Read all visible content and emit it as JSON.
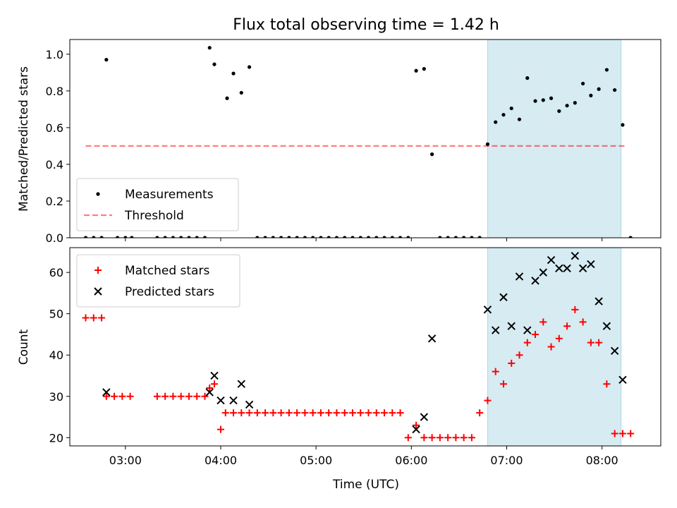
{
  "chart_data": [
    {
      "type": "scatter",
      "title": "Flux total observing time = 1.42 h",
      "ylabel": "Matched/Predicted stars",
      "ylim": [
        0,
        1.08
      ],
      "yticks": [
        0.0,
        0.2,
        0.4,
        0.6,
        0.8,
        1.0
      ],
      "ytick_labels": [
        "0.0",
        "0.2",
        "0.4",
        "0.6",
        "0.8",
        "1.0"
      ],
      "xlim": [
        "02:25",
        "08:37"
      ],
      "xticks": [
        "03:00",
        "04:00",
        "05:00",
        "06:00",
        "07:00",
        "08:00"
      ],
      "legend": {
        "placement": "lower-left",
        "entries": [
          "Measurements",
          "Threshold"
        ]
      },
      "highlight_span": {
        "x": [
          "06:48",
          "08:12"
        ],
        "color": "#add8e6"
      },
      "threshold": {
        "name": "Threshold",
        "y": 0.5,
        "x": [
          "02:35",
          "08:15"
        ],
        "color": "#ff0000"
      },
      "series": [
        {
          "name": "Measurements",
          "color": "#000000",
          "x": [
            "02:35",
            "02:40",
            "02:45",
            "02:48",
            "02:55",
            "03:00",
            "03:04",
            "03:20",
            "03:25",
            "03:30",
            "03:35",
            "03:40",
            "03:45",
            "03:50",
            "03:53",
            "03:56",
            "04:04",
            "04:08",
            "04:13",
            "04:18",
            "04:23",
            "04:28",
            "04:33",
            "04:38",
            "04:43",
            "04:48",
            "04:53",
            "04:58",
            "05:03",
            "05:08",
            "05:13",
            "05:18",
            "05:23",
            "05:28",
            "05:33",
            "05:38",
            "05:43",
            "05:48",
            "05:53",
            "05:58",
            "06:03",
            "06:08",
            "06:13",
            "06:18",
            "06:23",
            "06:28",
            "06:33",
            "06:38",
            "06:43",
            "06:48",
            "06:53",
            "06:58",
            "07:03",
            "07:08",
            "07:13",
            "07:18",
            "07:23",
            "07:28",
            "07:33",
            "07:38",
            "07:43",
            "07:48",
            "07:53",
            "07:58",
            "08:03",
            "08:08",
            "08:13",
            "08:18"
          ],
          "y": [
            0,
            0,
            0,
            0.97,
            0,
            0,
            0,
            0,
            0,
            0,
            0,
            0,
            0,
            0,
            1.035,
            0.945,
            0.76,
            0.895,
            0.79,
            0.93,
            0,
            0,
            0,
            0,
            0,
            0,
            0,
            0,
            0,
            0,
            0,
            0,
            0,
            0,
            0,
            0,
            0,
            0,
            0,
            0,
            0.91,
            0.92,
            0.455,
            0,
            0,
            0,
            0,
            0,
            0,
            0.51,
            0.63,
            0.67,
            0.705,
            0.645,
            0.87,
            0.745,
            0.75,
            0.76,
            0.69,
            0.72,
            0.735,
            0.84,
            0.775,
            0.81,
            0.915,
            0.805,
            0.615,
            0
          ]
        }
      ]
    },
    {
      "type": "scatter",
      "xlabel": "Time (UTC)",
      "ylabel": "Count",
      "ylim": [
        18,
        66
      ],
      "yticks": [
        20,
        30,
        40,
        50,
        60
      ],
      "ytick_labels": [
        "20",
        "30",
        "40",
        "50",
        "60"
      ],
      "xlim": [
        "02:25",
        "08:37"
      ],
      "xticks": [
        "03:00",
        "04:00",
        "05:00",
        "06:00",
        "07:00",
        "08:00"
      ],
      "xtick_labels": [
        "03:00",
        "04:00",
        "05:00",
        "06:00",
        "07:00",
        "08:00"
      ],
      "legend": {
        "placement": "top-left",
        "entries": [
          "Matched stars",
          "Predicted stars"
        ]
      },
      "highlight_span": {
        "x": [
          "06:48",
          "08:12"
        ],
        "color": "#add8e6"
      },
      "series": [
        {
          "name": "Matched stars",
          "marker": "+",
          "color": "#ff0000",
          "x": [
            "02:35",
            "02:40",
            "02:45",
            "02:48",
            "02:53",
            "02:58",
            "03:03",
            "03:20",
            "03:25",
            "03:30",
            "03:35",
            "03:40",
            "03:45",
            "03:50",
            "03:53",
            "03:56",
            "04:00",
            "04:03",
            "04:08",
            "04:13",
            "04:18",
            "04:23",
            "04:28",
            "04:33",
            "04:38",
            "04:43",
            "04:48",
            "04:53",
            "04:58",
            "05:03",
            "05:08",
            "05:13",
            "05:18",
            "05:23",
            "05:28",
            "05:33",
            "05:38",
            "05:43",
            "05:48",
            "05:53",
            "05:58",
            "06:03",
            "06:08",
            "06:13",
            "06:18",
            "06:23",
            "06:28",
            "06:33",
            "06:38",
            "06:43",
            "06:48",
            "06:53",
            "06:58",
            "07:03",
            "07:08",
            "07:13",
            "07:18",
            "07:23",
            "07:28",
            "07:33",
            "07:38",
            "07:43",
            "07:48",
            "07:53",
            "07:58",
            "08:03",
            "08:08",
            "08:13",
            "08:18"
          ],
          "y": [
            49,
            49,
            49,
            30,
            30,
            30,
            30,
            30,
            30,
            30,
            30,
            30,
            30,
            30,
            32,
            33,
            22,
            26,
            26,
            26,
            26,
            26,
            26,
            26,
            26,
            26,
            26,
            26,
            26,
            26,
            26,
            26,
            26,
            26,
            26,
            26,
            26,
            26,
            26,
            26,
            20,
            23,
            20,
            20,
            20,
            20,
            20,
            20,
            20,
            26,
            29,
            36,
            33,
            38,
            40,
            43,
            45,
            48,
            42,
            44,
            47,
            51,
            48,
            43,
            43,
            33,
            21,
            21,
            21
          ]
        },
        {
          "name": "Predicted stars",
          "marker": "x",
          "color": "#000000",
          "x": [
            "02:48",
            "03:53",
            "03:56",
            "04:00",
            "04:08",
            "04:13",
            "04:18",
            "06:03",
            "06:08",
            "06:13",
            "06:48",
            "06:53",
            "06:58",
            "07:03",
            "07:08",
            "07:13",
            "07:18",
            "07:23",
            "07:28",
            "07:33",
            "07:38",
            "07:43",
            "07:48",
            "07:53",
            "07:58",
            "08:03",
            "08:08",
            "08:13"
          ],
          "y": [
            31,
            31,
            35,
            29,
            29,
            33,
            28,
            22,
            25,
            44,
            51,
            46,
            54,
            47,
            59,
            46,
            58,
            60,
            63,
            61,
            61,
            64,
            61,
            62,
            53,
            47,
            41,
            34
          ]
        }
      ]
    }
  ]
}
